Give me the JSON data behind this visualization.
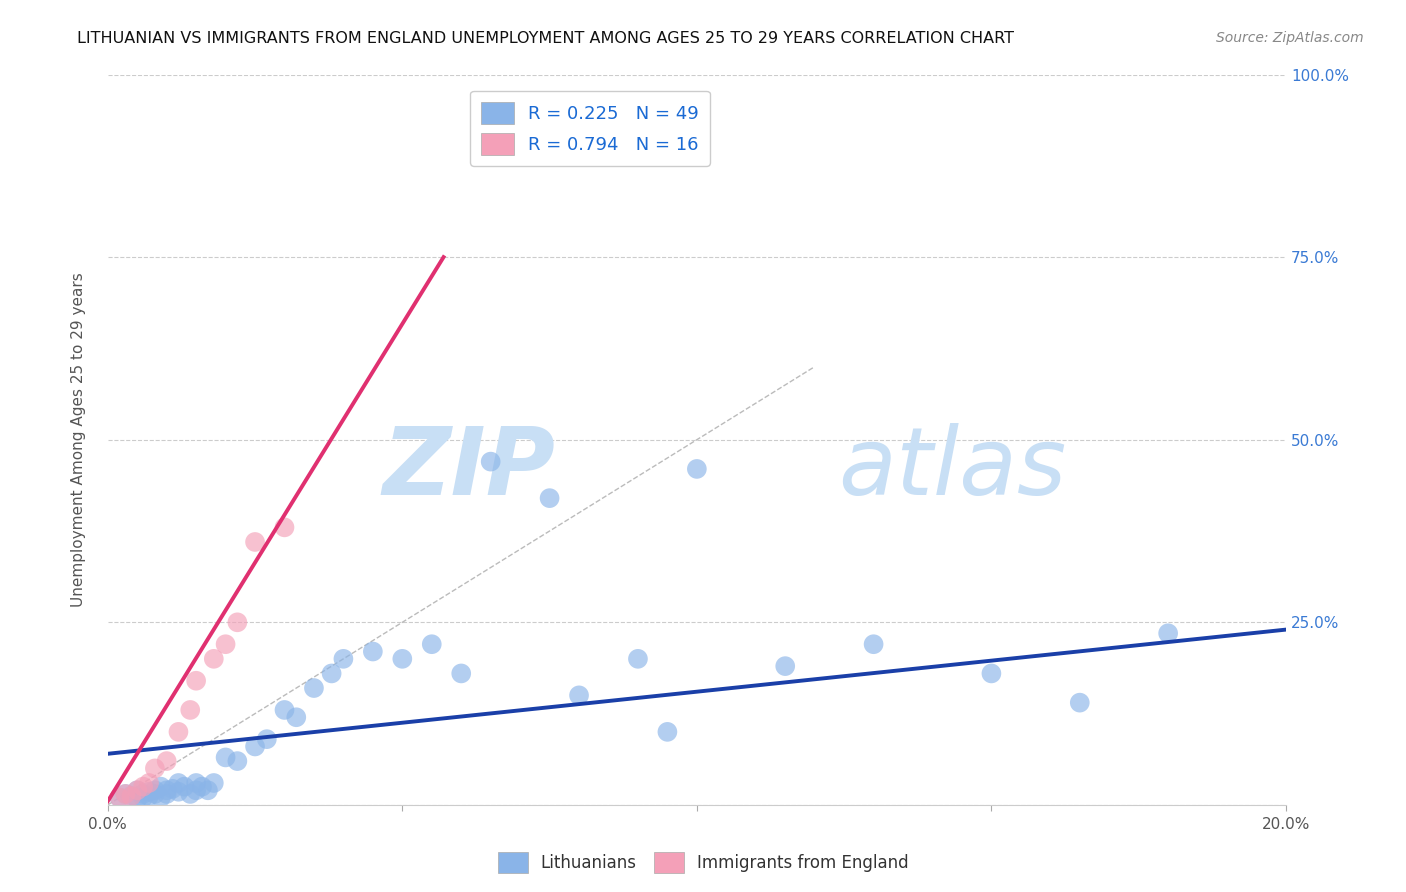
{
  "title": "LITHUANIAN VS IMMIGRANTS FROM ENGLAND UNEMPLOYMENT AMONG AGES 25 TO 29 YEARS CORRELATION CHART",
  "source": "Source: ZipAtlas.com",
  "ylabel": "Unemployment Among Ages 25 to 29 years",
  "xlim": [
    0,
    0.2
  ],
  "ylim": [
    0,
    1.0
  ],
  "R_blue": 0.225,
  "N_blue": 49,
  "R_pink": 0.794,
  "N_pink": 16,
  "legend_label_blue": "Lithuanians",
  "legend_label_pink": "Immigrants from England",
  "color_blue": "#8ab4e8",
  "color_pink": "#f4a0b8",
  "line_color_blue": "#1a3fa8",
  "line_color_pink": "#e03070",
  "color_right_axis": "#3a7ad4",
  "watermark_zip": "ZIP",
  "watermark_atlas": "atlas",
  "watermark_color": "#c8dff5",
  "blue_scatter_x": [
    0.002,
    0.003,
    0.004,
    0.005,
    0.005,
    0.006,
    0.006,
    0.007,
    0.007,
    0.008,
    0.008,
    0.009,
    0.009,
    0.01,
    0.01,
    0.011,
    0.012,
    0.012,
    0.013,
    0.014,
    0.015,
    0.015,
    0.016,
    0.017,
    0.018,
    0.02,
    0.022,
    0.025,
    0.027,
    0.03,
    0.032,
    0.035,
    0.038,
    0.04,
    0.045,
    0.05,
    0.055,
    0.06,
    0.065,
    0.075,
    0.08,
    0.09,
    0.095,
    0.1,
    0.115,
    0.13,
    0.15,
    0.165,
    0.18
  ],
  "blue_scatter_y": [
    0.01,
    0.015,
    0.012,
    0.02,
    0.008,
    0.015,
    0.01,
    0.018,
    0.012,
    0.02,
    0.015,
    0.025,
    0.01,
    0.02,
    0.015,
    0.022,
    0.018,
    0.03,
    0.025,
    0.015,
    0.02,
    0.03,
    0.025,
    0.02,
    0.03,
    0.065,
    0.06,
    0.08,
    0.09,
    0.13,
    0.12,
    0.16,
    0.18,
    0.2,
    0.21,
    0.2,
    0.22,
    0.18,
    0.47,
    0.42,
    0.15,
    0.2,
    0.1,
    0.46,
    0.19,
    0.22,
    0.18,
    0.14,
    0.235
  ],
  "pink_scatter_x": [
    0.002,
    0.003,
    0.004,
    0.005,
    0.006,
    0.007,
    0.008,
    0.01,
    0.012,
    0.014,
    0.015,
    0.018,
    0.02,
    0.022,
    0.025,
    0.03
  ],
  "pink_scatter_y": [
    0.01,
    0.015,
    0.012,
    0.02,
    0.025,
    0.03,
    0.05,
    0.06,
    0.1,
    0.13,
    0.17,
    0.2,
    0.22,
    0.25,
    0.36,
    0.38
  ],
  "blue_line_x": [
    0.0,
    0.2
  ],
  "blue_line_y": [
    0.07,
    0.24
  ],
  "pink_line_x": [
    0.0,
    0.057
  ],
  "pink_line_y": [
    0.005,
    0.75
  ],
  "diag_line_x": [
    0.0,
    0.12
  ],
  "diag_line_y": [
    0.0,
    0.6
  ]
}
